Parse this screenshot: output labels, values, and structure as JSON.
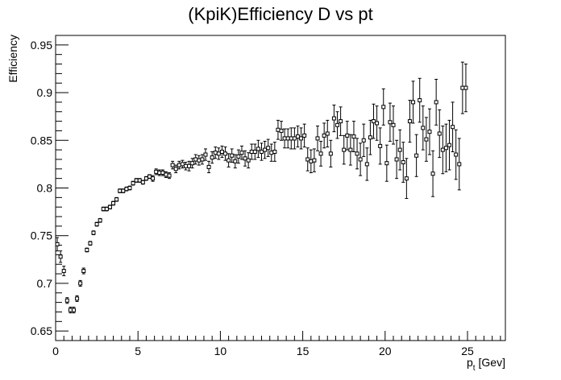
{
  "chart_data": {
    "type": "scatter",
    "title": "(KpiK)Efficiency D vs pt",
    "xlabel_main": "p",
    "xlabel_sub": "t",
    "xlabel_unit": "[Gev]",
    "ylabel": "Efficiency",
    "xlim": [
      0,
      27.3
    ],
    "ylim": [
      0.64,
      0.96
    ],
    "x_ticks": [
      0,
      5,
      10,
      15,
      20,
      25
    ],
    "x_tick_labels": [
      "0",
      "5",
      "10",
      "15",
      "20",
      "25"
    ],
    "y_ticks": [
      0.65,
      0.7,
      0.75,
      0.8,
      0.85,
      0.9,
      0.95
    ],
    "y_tick_labels": [
      "0.65",
      "0.7",
      "0.75",
      "0.8",
      "0.85",
      "0.9",
      "0.95"
    ],
    "grid": false,
    "legend": "none",
    "marker": "open-square-with-error-bars",
    "x_bin_halfwidth": 0.1,
    "x": [
      0.1,
      0.3,
      0.5,
      0.7,
      0.9,
      1.1,
      1.3,
      1.5,
      1.7,
      1.9,
      2.1,
      2.3,
      2.5,
      2.7,
      2.9,
      3.1,
      3.3,
      3.5,
      3.7,
      3.9,
      4.1,
      4.3,
      4.5,
      4.7,
      4.9,
      5.1,
      5.3,
      5.5,
      5.7,
      5.9,
      6.1,
      6.3,
      6.5,
      6.7,
      6.9,
      7.1,
      7.3,
      7.5,
      7.7,
      7.9,
      8.1,
      8.3,
      8.5,
      8.7,
      8.9,
      9.1,
      9.3,
      9.5,
      9.7,
      9.9,
      10.1,
      10.3,
      10.5,
      10.7,
      10.9,
      11.1,
      11.3,
      11.5,
      11.7,
      11.9,
      12.1,
      12.3,
      12.5,
      12.7,
      12.9,
      13.1,
      13.3,
      13.5,
      13.7,
      13.9,
      14.1,
      14.3,
      14.5,
      14.7,
      14.9,
      15.1,
      15.3,
      15.5,
      15.7,
      15.9,
      16.1,
      16.3,
      16.5,
      16.7,
      16.9,
      17.1,
      17.3,
      17.5,
      17.7,
      17.9,
      18.1,
      18.3,
      18.5,
      18.7,
      18.9,
      19.1,
      19.3,
      19.5,
      19.7,
      19.9,
      20.1,
      20.3,
      20.5,
      20.7,
      20.9,
      21.1,
      21.3,
      21.5,
      21.7,
      21.9,
      22.1,
      22.3,
      22.5,
      22.7,
      22.9,
      23.1,
      23.3,
      23.5,
      23.7,
      23.9,
      24.1,
      24.3,
      24.5,
      24.7,
      24.9
    ],
    "y": [
      0.741,
      0.728,
      0.713,
      0.682,
      0.672,
      0.672,
      0.684,
      0.7,
      0.713,
      0.735,
      0.742,
      0.753,
      0.762,
      0.766,
      0.778,
      0.778,
      0.78,
      0.784,
      0.788,
      0.797,
      0.797,
      0.799,
      0.8,
      0.805,
      0.808,
      0.808,
      0.806,
      0.81,
      0.812,
      0.81,
      0.817,
      0.816,
      0.816,
      0.814,
      0.813,
      0.824,
      0.82,
      0.824,
      0.825,
      0.823,
      0.823,
      0.826,
      0.83,
      0.829,
      0.83,
      0.835,
      0.822,
      0.832,
      0.837,
      0.836,
      0.838,
      0.836,
      0.829,
      0.834,
      0.828,
      0.833,
      0.837,
      0.831,
      0.829,
      0.838,
      0.838,
      0.841,
      0.838,
      0.84,
      0.842,
      0.837,
      0.838,
      0.861,
      0.86,
      0.852,
      0.852,
      0.852,
      0.852,
      0.854,
      0.852,
      0.855,
      0.83,
      0.828,
      0.829,
      0.852,
      0.836,
      0.855,
      0.857,
      0.836,
      0.873,
      0.866,
      0.87,
      0.84,
      0.855,
      0.84,
      0.854,
      0.836,
      0.83,
      0.85,
      0.825,
      0.853,
      0.87,
      0.868,
      0.844,
      0.885,
      0.826,
      0.869,
      0.866,
      0.83,
      0.84,
      0.827,
      0.81,
      0.87,
      0.89,
      0.834,
      0.892,
      0.863,
      0.851,
      0.859,
      0.815,
      0.89,
      0.857,
      0.84,
      0.842,
      0.845,
      0.864,
      0.835,
      0.825,
      0.905,
      0.905
    ],
    "y_err": [
      0.007,
      0.006,
      0.005,
      0.003,
      0.003,
      0.003,
      0.003,
      0.003,
      0.003,
      0.002,
      0.002,
      0.002,
      0.002,
      0.002,
      0.002,
      0.002,
      0.002,
      0.002,
      0.002,
      0.002,
      0.002,
      0.002,
      0.002,
      0.002,
      0.002,
      0.002,
      0.002,
      0.002,
      0.002,
      0.003,
      0.003,
      0.003,
      0.003,
      0.003,
      0.003,
      0.004,
      0.004,
      0.004,
      0.004,
      0.004,
      0.005,
      0.005,
      0.005,
      0.005,
      0.005,
      0.006,
      0.006,
      0.006,
      0.006,
      0.006,
      0.006,
      0.007,
      0.007,
      0.007,
      0.007,
      0.007,
      0.007,
      0.008,
      0.008,
      0.008,
      0.008,
      0.009,
      0.009,
      0.009,
      0.009,
      0.009,
      0.01,
      0.01,
      0.01,
      0.01,
      0.01,
      0.011,
      0.011,
      0.011,
      0.011,
      0.012,
      0.012,
      0.012,
      0.012,
      0.013,
      0.013,
      0.013,
      0.014,
      0.014,
      0.014,
      0.014,
      0.015,
      0.015,
      0.015,
      0.016,
      0.016,
      0.016,
      0.017,
      0.017,
      0.017,
      0.018,
      0.018,
      0.018,
      0.019,
      0.019,
      0.019,
      0.02,
      0.02,
      0.02,
      0.021,
      0.021,
      0.021,
      0.022,
      0.022,
      0.022,
      0.023,
      0.023,
      0.023,
      0.024,
      0.024,
      0.024,
      0.025,
      0.025,
      0.025,
      0.026,
      0.026,
      0.026,
      0.027,
      0.027,
      0.025
    ]
  }
}
